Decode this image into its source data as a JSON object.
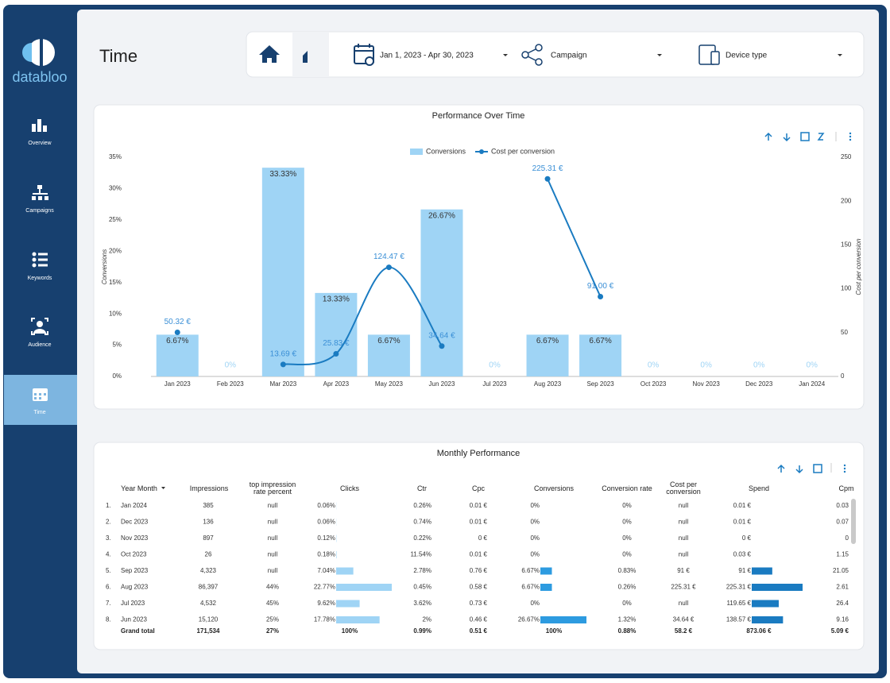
{
  "sidebar": {
    "logo": "databloo",
    "nav": [
      "Overview",
      "Campaigns",
      "Keywords",
      "Audience",
      "Time"
    ]
  },
  "header": {
    "title": "Time",
    "date_range": "Jan 1, 2023 - Apr 30, 2023",
    "filters": [
      "Campaign",
      "Device type"
    ]
  },
  "chart_data": {
    "type": "combo",
    "title": "Performance Over Time",
    "categories": [
      "Jan 2023",
      "Feb 2023",
      "Mar 2023",
      "Apr 2023",
      "May 2023",
      "Jun 2023",
      "Jul 2023",
      "Aug 2023",
      "Sep 2023",
      "Oct 2023",
      "Nov 2023",
      "Dec 2023",
      "Jan 2024"
    ],
    "series": [
      {
        "name": "Conversions",
        "type": "bar",
        "color": "#9fd4f5",
        "values": [
          6.67,
          0,
          33.33,
          13.33,
          6.67,
          26.67,
          0,
          6.67,
          6.67,
          0,
          0,
          0,
          0
        ],
        "value_labels": [
          "6.67%",
          "0%",
          "33.33%",
          "13.33%",
          "6.67%",
          "26.67%",
          "0%",
          "6.67%",
          "6.67%",
          "0%",
          "0%",
          "0%",
          "0%"
        ]
      },
      {
        "name": "Cost per conversion",
        "type": "line",
        "axis": "y2",
        "color": "#1a7bc1",
        "values": [
          50.32,
          null,
          13.69,
          25.83,
          124.47,
          34.64,
          null,
          225.31,
          91.0,
          null,
          null,
          null,
          null
        ],
        "value_labels": [
          "50.32 €",
          null,
          "13.69 €",
          "25.83 €",
          "124.47 €",
          "34.64 €",
          null,
          "225.31 €",
          "91.00 €",
          null,
          null,
          null,
          null
        ]
      }
    ],
    "ylabel": "Conversions",
    "y2label": "Cost per conversion",
    "ylim": [
      0,
      35
    ],
    "yticks": [
      {
        "value": 0,
        "label": "0%"
      },
      {
        "value": 5,
        "label": "5%"
      },
      {
        "value": 10,
        "label": "10%"
      },
      {
        "value": 15,
        "label": "15%"
      },
      {
        "value": 20,
        "label": "20%"
      },
      {
        "value": 25,
        "label": "25%"
      },
      {
        "value": 30,
        "label": "30%"
      },
      {
        "value": 35,
        "label": "35%"
      }
    ],
    "y2lim": [
      0,
      250
    ],
    "y2ticks": [
      0,
      50,
      100,
      150,
      200,
      250
    ]
  },
  "table": {
    "title": "Monthly Performance",
    "columns": [
      "Year Month",
      "Impressions",
      "top impression rate percent",
      "Clicks",
      "Ctr",
      "Cpc",
      "Conversions",
      "Conversion rate",
      "Cost per conversion",
      "Spend",
      "Cpm"
    ],
    "rows": [
      [
        "1.",
        "Jan 2024",
        "385",
        "null",
        {
          "value": 0.06,
          "label": "0.06%"
        },
        "0.26%",
        "0.01 €",
        {
          "value": 0,
          "label": "0%"
        },
        "0%",
        "null",
        {
          "value": 0.01,
          "label": "0.01 €"
        },
        "0.03"
      ],
      [
        "2.",
        "Dec 2023",
        "136",
        "null",
        {
          "value": 0.06,
          "label": "0.06%"
        },
        "0.74%",
        "0.01 €",
        {
          "value": 0,
          "label": "0%"
        },
        "0%",
        "null",
        {
          "value": 0.01,
          "label": "0.01 €"
        },
        "0.07"
      ],
      [
        "3.",
        "Nov 2023",
        "897",
        "null",
        {
          "value": 0.12,
          "label": "0.12%"
        },
        "0.22%",
        "0 €",
        {
          "value": 0,
          "label": "0%"
        },
        "0%",
        "null",
        {
          "value": 0,
          "label": "0 €"
        },
        "0"
      ],
      [
        "4.",
        "Oct 2023",
        "26",
        "null",
        {
          "value": 0.18,
          "label": "0.18%"
        },
        "11.54%",
        "0.01 €",
        {
          "value": 0,
          "label": "0%"
        },
        "0%",
        "null",
        {
          "value": 0.03,
          "label": "0.03 €"
        },
        "1.15"
      ],
      [
        "5.",
        "Sep 2023",
        "4,323",
        "null",
        {
          "value": 7.04,
          "label": "7.04%"
        },
        "2.78%",
        "0.76 €",
        {
          "value": 6.67,
          "label": "6.67%"
        },
        "0.83%",
        "91 €",
        {
          "value": 91,
          "label": "91 €"
        },
        "21.05"
      ],
      [
        "6.",
        "Aug 2023",
        "86,397",
        "44%",
        {
          "value": 22.77,
          "label": "22.77%"
        },
        "0.45%",
        "0.58 €",
        {
          "value": 6.67,
          "label": "6.67%"
        },
        "0.26%",
        "225.31 €",
        {
          "value": 225.31,
          "label": "225.31 €"
        },
        "2.61"
      ],
      [
        "7.",
        "Jul 2023",
        "4,532",
        "45%",
        {
          "value": 9.62,
          "label": "9.62%"
        },
        "3.62%",
        "0.73 €",
        {
          "value": 0,
          "label": "0%"
        },
        "0%",
        "null",
        {
          "value": 119.65,
          "label": "119.65 €"
        },
        "26.4"
      ],
      [
        "8.",
        "Jun 2023",
        "15,120",
        "25%",
        {
          "value": 17.78,
          "label": "17.78%"
        },
        "2%",
        "0.46 €",
        {
          "value": 26.67,
          "label": "26.67%"
        },
        "1.32%",
        "34.64 €",
        {
          "value": 138.57,
          "label": "138.57 €"
        },
        "9.16"
      ]
    ],
    "total": [
      "Grand total",
      "171,534",
      "27%",
      "100%",
      "0.99%",
      "0.51 €",
      "100%",
      "0.88%",
      "58.2 €",
      "873.06 €",
      "5.09 €"
    ]
  }
}
